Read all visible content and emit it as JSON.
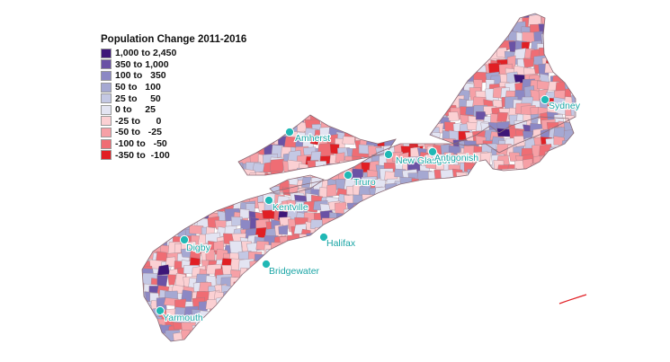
{
  "map": {
    "legend": {
      "title": "Population Change 2011-2016",
      "classes": [
        {
          "label": "1,000 to 2,450",
          "color": "#3d1678"
        },
        {
          "label": "350 to 1,000",
          "color": "#6a52a5"
        },
        {
          "label": "100 to   350",
          "color": "#8c88c4"
        },
        {
          "label": "50 to   100",
          "color": "#a5a8d2"
        },
        {
          "label": "25 to     50",
          "color": "#c4c8e4"
        },
        {
          "label": "0 to     25",
          "color": "#e3e4f2"
        },
        {
          "label": "-25 to      0",
          "color": "#fbd0d3"
        },
        {
          "label": "-50 to   -25",
          "color": "#f6a0a6"
        },
        {
          "label": "-100 to   -50",
          "color": "#ef6d74"
        },
        {
          "label": "-350 to  -100",
          "color": "#e11f24"
        }
      ]
    },
    "cities": [
      {
        "name": "Amherst"
      },
      {
        "name": "New Glasgow"
      },
      {
        "name": "Antigonish"
      },
      {
        "name": "Sydney"
      },
      {
        "name": "Truro"
      },
      {
        "name": "Kentville"
      },
      {
        "name": "Digby"
      },
      {
        "name": "Halifax"
      },
      {
        "name": "Bridgewater"
      },
      {
        "name": "Yarmouth"
      }
    ],
    "colors": {
      "city_marker": "#20b8b5",
      "city_label": "#1aa5a5",
      "boundary": "#9a7c86"
    }
  }
}
